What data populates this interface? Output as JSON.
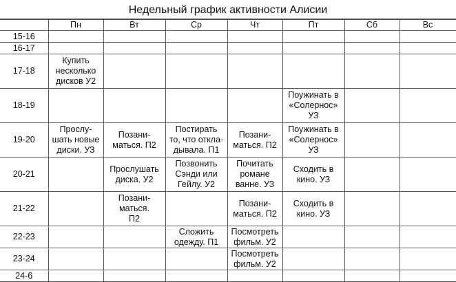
{
  "title": "Недельный график активности Алисии",
  "headers": [
    "",
    "Пн",
    "Вт",
    "Ср",
    "Чт",
    "Пт",
    "Сб",
    "Вс"
  ],
  "rows": [
    {
      "time": "15-16",
      "cells": [
        "",
        "",
        "",
        "",
        "",
        "",
        ""
      ]
    },
    {
      "time": "16-17",
      "cells": [
        "",
        "",
        "",
        "",
        "",
        "",
        ""
      ]
    },
    {
      "time": "17-18",
      "cells": [
        "Купить\nнесколько\nдисков У2",
        "",
        "",
        "",
        "",
        "",
        ""
      ]
    },
    {
      "time": "18-19",
      "cells": [
        "",
        "",
        "",
        "",
        "Поужинать в\n«Солернос»\nУЗ",
        "",
        ""
      ]
    },
    {
      "time": "19-20",
      "cells": [
        "Прослу-\nшать новые\nдиски. УЗ",
        "Позани-\nматься. П2",
        "Постирать\nто, что откла-\nдывала. П1",
        "Позани-\nматься. П2",
        "Поужинать в\n«Солернос»\nУЗ",
        "",
        ""
      ]
    },
    {
      "time": "20-21",
      "cells": [
        "",
        "Прослушать\nдиска. У2",
        "Позвонить\nСэнди или\nГейлу. У2",
        "Почитать\nромане\nванне. УЗ",
        "Сходить в\nкино. УЗ",
        "",
        ""
      ]
    },
    {
      "time": "21-22",
      "cells": [
        "",
        "Позани-\nматься.\nП2",
        "",
        "Позани-\nматься. П2",
        "Сходить в\nкино. УЗ",
        "",
        ""
      ]
    },
    {
      "time": "22-23",
      "cells": [
        "",
        "",
        "Сложить\nодежду. П1",
        "Посмотреть\nфильм. У2",
        "",
        "",
        ""
      ]
    },
    {
      "time": "23-24",
      "cells": [
        "",
        "",
        "",
        "Посмотреть\nфильм. У2",
        "",
        "",
        ""
      ]
    },
    {
      "time": "24-6",
      "cells": [
        "",
        "",
        "",
        "",
        "",
        "",
        ""
      ]
    }
  ]
}
